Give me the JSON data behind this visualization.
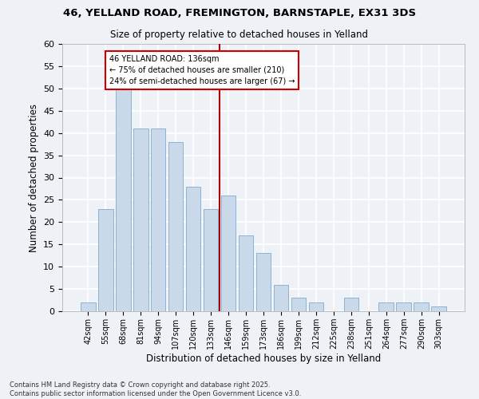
{
  "title_line1": "46, YELLAND ROAD, FREMINGTON, BARNSTAPLE, EX31 3DS",
  "title_line2": "Size of property relative to detached houses in Yelland",
  "xlabel": "Distribution of detached houses by size in Yelland",
  "ylabel": "Number of detached properties",
  "categories": [
    "42sqm",
    "55sqm",
    "68sqm",
    "81sqm",
    "94sqm",
    "107sqm",
    "120sqm",
    "133sqm",
    "146sqm",
    "159sqm",
    "173sqm",
    "186sqm",
    "199sqm",
    "212sqm",
    "225sqm",
    "238sqm",
    "251sqm",
    "264sqm",
    "277sqm",
    "290sqm",
    "303sqm"
  ],
  "values": [
    2,
    23,
    50,
    41,
    41,
    38,
    28,
    23,
    26,
    17,
    13,
    6,
    3,
    2,
    0,
    3,
    0,
    2,
    2,
    2,
    1
  ],
  "bar_color": "#c9d9ea",
  "bar_edge_color": "#8ab4d4",
  "background_color": "#eef2f7",
  "grid_color": "#ffffff",
  "vline_color": "#aa0000",
  "annotation_text": "46 YELLAND ROAD: 136sqm\n← 75% of detached houses are smaller (210)\n24% of semi-detached houses are larger (67) →",
  "annotation_box_color": "#ffffff",
  "annotation_box_edge_color": "#cc0000",
  "ylim": [
    0,
    60
  ],
  "yticks": [
    0,
    5,
    10,
    15,
    20,
    25,
    30,
    35,
    40,
    45,
    50,
    55,
    60
  ],
  "footer_text": "Contains HM Land Registry data © Crown copyright and database right 2025.\nContains public sector information licensed under the Open Government Licence v3.0.",
  "figsize": [
    6.0,
    5.0
  ],
  "dpi": 100
}
